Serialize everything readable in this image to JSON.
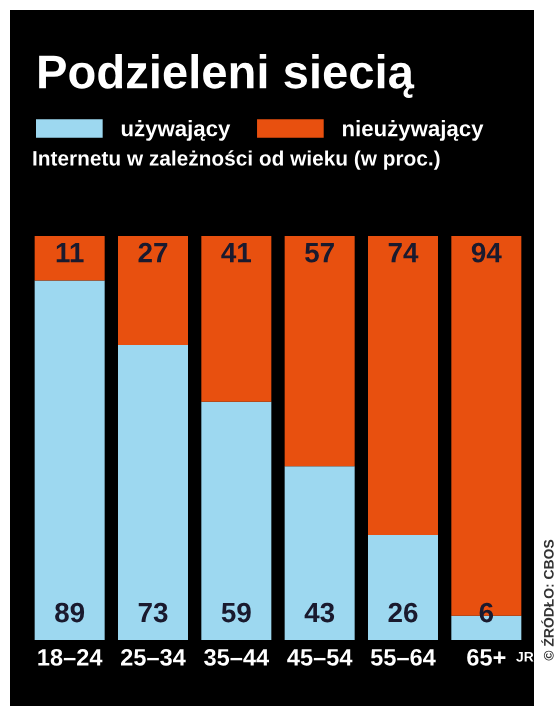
{
  "chart_data": {
    "type": "bar",
    "stacked": true,
    "title": "Podzieleni siecią",
    "subtitle": "Internetu w zależności od wieku (w proc.)",
    "categories": [
      "18–24",
      "25–34",
      "35–44",
      "45–54",
      "55–64",
      "65+"
    ],
    "series": [
      {
        "name": "używający",
        "color": "#9dd8f0",
        "values": [
          89,
          73,
          59,
          43,
          26,
          6
        ]
      },
      {
        "name": "nieużywający",
        "color": "#e8500f",
        "values": [
          11,
          27,
          41,
          57,
          74,
          94
        ]
      }
    ],
    "data_labels": true,
    "legend": "top",
    "grid": false,
    "annotations": [
      "JR",
      "© ŹRÓDŁO: CBOS"
    ]
  }
}
